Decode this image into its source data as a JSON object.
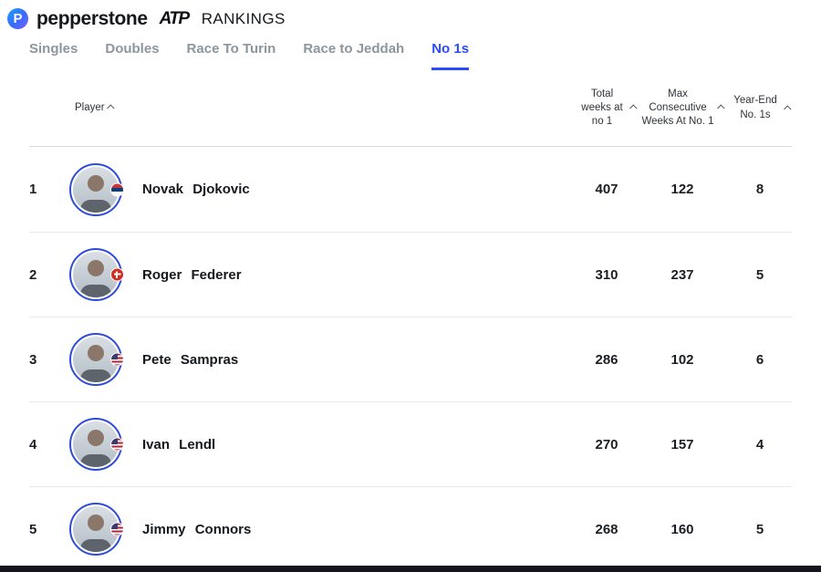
{
  "brand": {
    "p_icon": "P",
    "name": "pepperstone",
    "atp": "ATP",
    "rankings": "RANKINGS"
  },
  "tabs": [
    {
      "label": "Singles",
      "active": false
    },
    {
      "label": "Doubles",
      "active": false
    },
    {
      "label": "Race To Turin",
      "active": false
    },
    {
      "label": "Race to Jeddah",
      "active": false
    },
    {
      "label": "No 1s",
      "active": true
    }
  ],
  "active_tab": "No 1s",
  "table": {
    "headers": {
      "player": "Player",
      "total_weeks": "Total weeks at no 1",
      "max_consecutive": "Max Consecutive Weeks At No. 1",
      "year_end": "Year-End No. 1s"
    },
    "rows": [
      {
        "rank": "1",
        "name": "Novak Djokovic",
        "flag": "serbia",
        "total_weeks": "407",
        "max_consecutive": "122",
        "year_end": "8"
      },
      {
        "rank": "2",
        "name": "Roger Federer",
        "flag": "switzerland",
        "total_weeks": "310",
        "max_consecutive": "237",
        "year_end": "5"
      },
      {
        "rank": "3",
        "name": "Pete Sampras",
        "flag": "usa",
        "total_weeks": "286",
        "max_consecutive": "102",
        "year_end": "6"
      },
      {
        "rank": "4",
        "name": "Ivan Lendl",
        "flag": "usa",
        "total_weeks": "270",
        "max_consecutive": "157",
        "year_end": "4"
      },
      {
        "rank": "5",
        "name": "Jimmy Connors",
        "flag": "usa",
        "total_weeks": "268",
        "max_consecutive": "160",
        "year_end": "5"
      }
    ]
  },
  "colors": {
    "accent_blue": "#2b4bff",
    "inactive_tab_gray": "#8d959d",
    "footer_dark": "#15161d",
    "avatar_ring_blue": "#2e4cd8"
  }
}
